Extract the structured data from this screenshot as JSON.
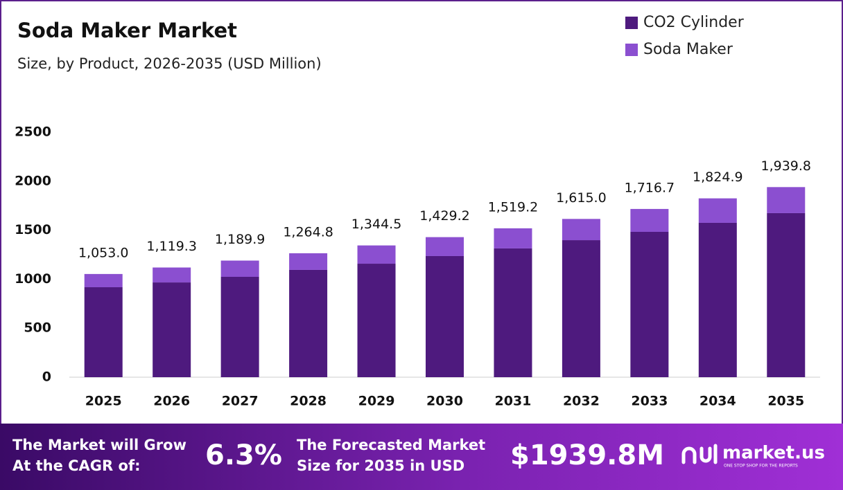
{
  "chart_data": {
    "type": "bar",
    "stacked": true,
    "title": "Soda Maker Market",
    "subtitle": "Size, by Product, 2026-2035 (USD Million)",
    "categories": [
      "2025",
      "2026",
      "2027",
      "2028",
      "2029",
      "2030",
      "2031",
      "2032",
      "2033",
      "2034",
      "2035"
    ],
    "series": [
      {
        "name": "CO2 Cylinder",
        "color": "#4e1a7e",
        "values": [
          918,
          967,
          1024,
          1095,
          1158,
          1236,
          1314,
          1398,
          1483,
          1575,
          1674
        ]
      },
      {
        "name": "Soda Maker",
        "color": "#8b4fd0",
        "values": [
          135.0,
          152.3,
          165.9,
          169.8,
          186.5,
          193.2,
          205.2,
          217.0,
          233.7,
          249.9,
          265.8
        ]
      }
    ],
    "total_labels": [
      "1,053.0",
      "1,119.3",
      "1,189.9",
      "1,264.8",
      "1,344.5",
      "1,429.2",
      "1,519.2",
      "1,615.0",
      "1,716.7",
      "1,824.9",
      "1,939.8"
    ],
    "ylim": [
      0,
      2500
    ],
    "yticks": [
      0,
      500,
      1000,
      1500,
      2000,
      2500
    ],
    "grid": false,
    "legend": "top-right"
  },
  "banner": {
    "cagr_text": [
      "The Market will Grow",
      "At the CAGR of:"
    ],
    "cagr_value": "6.3%",
    "forecast_text": [
      "The Forecasted Market",
      "Size for 2035 in USD"
    ],
    "forecast_value": "$1939.8M",
    "brand": "market.us",
    "tagline": "ONE STOP SHOP FOR THE REPORTS"
  }
}
